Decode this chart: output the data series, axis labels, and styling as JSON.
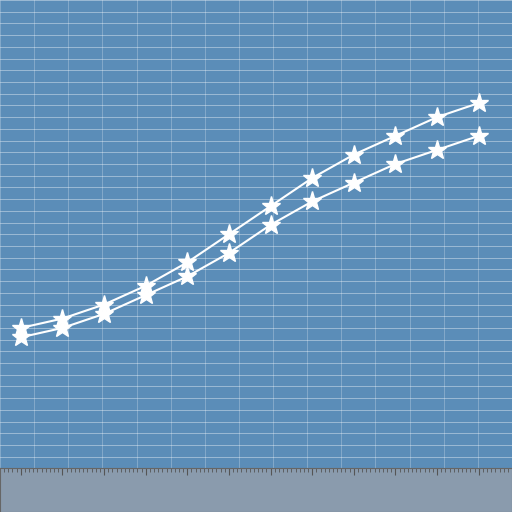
{
  "background_color": "#5B8DB8",
  "grid_color_major_h": "#FFFFFF",
  "grid_color_major_v": "#7aaace",
  "line_color": "#FFFFFF",
  "marker_color": "#FFFFFF",
  "axis_bg_color": "#8A9BAD",
  "tick_color": "#555555",
  "spine_color": "#666666",
  "years": [
    2013,
    2014,
    2015,
    2016,
    2017,
    2018,
    2019,
    2020,
    2021,
    2022,
    2023,
    2024
  ],
  "supply_main": [
    30,
    32,
    35,
    39,
    44,
    50,
    56,
    62,
    67,
    71,
    75,
    78
  ],
  "supply_secondary": [
    28,
    30,
    33,
    37,
    41,
    46,
    52,
    57,
    61,
    65,
    68,
    71
  ],
  "xlim": [
    2012.5,
    2024.8
  ],
  "ylim": [
    0,
    100
  ],
  "figsize": [
    5.12,
    5.12
  ],
  "dpi": 100,
  "line_width": 1.5,
  "marker_size": 14,
  "n_hgrid": 40,
  "n_vgrid": 15
}
